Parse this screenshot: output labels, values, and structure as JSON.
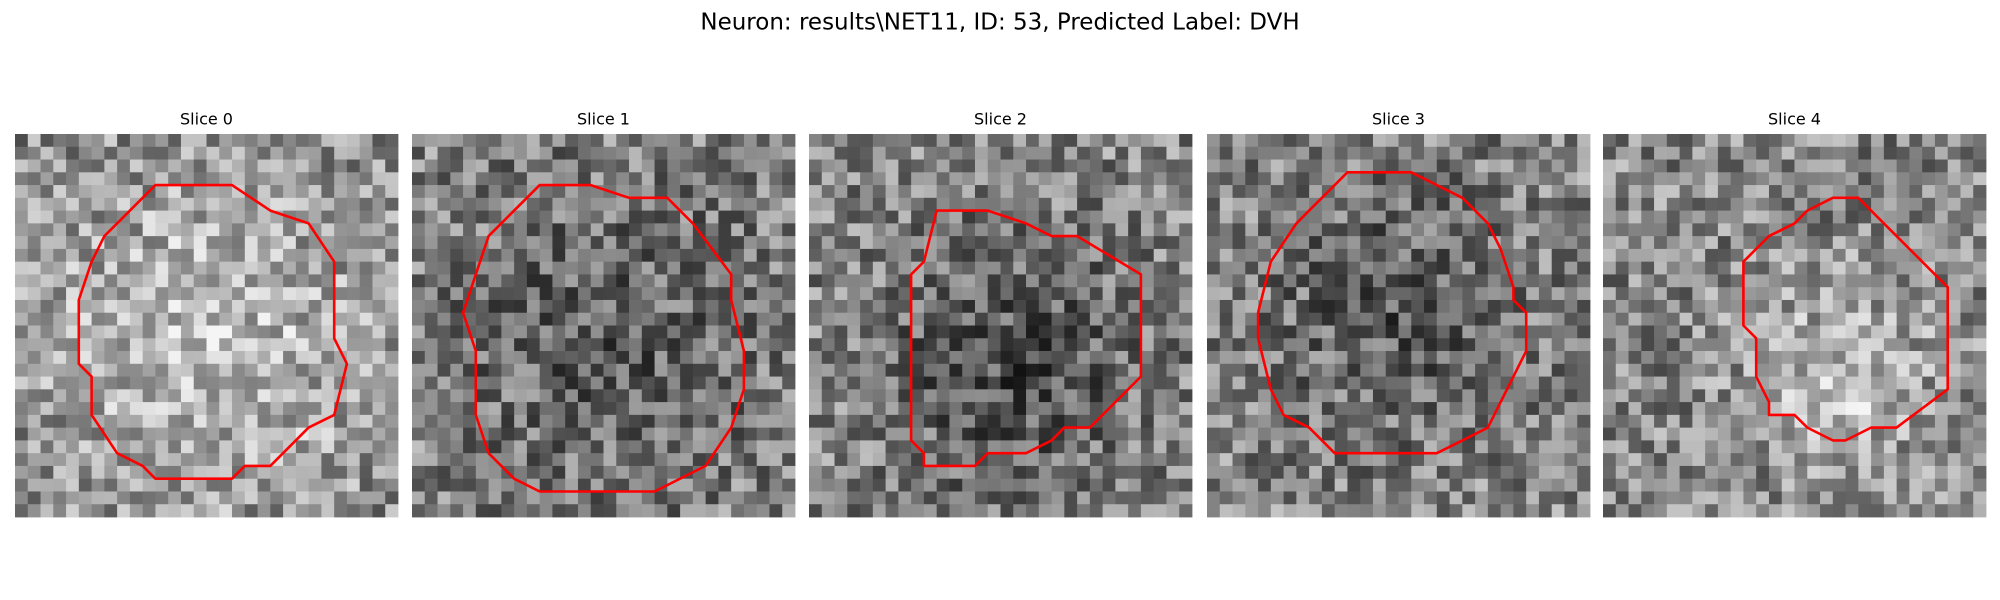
{
  "title": "Neuron: results\\NET11, ID: 53, Predicted Label: DVH",
  "panels": [
    {
      "title": "Slice 0"
    },
    {
      "title": "Slice 1"
    },
    {
      "title": "Slice 2"
    },
    {
      "title": "Slice 3"
    },
    {
      "title": "Slice 4"
    }
  ]
}
